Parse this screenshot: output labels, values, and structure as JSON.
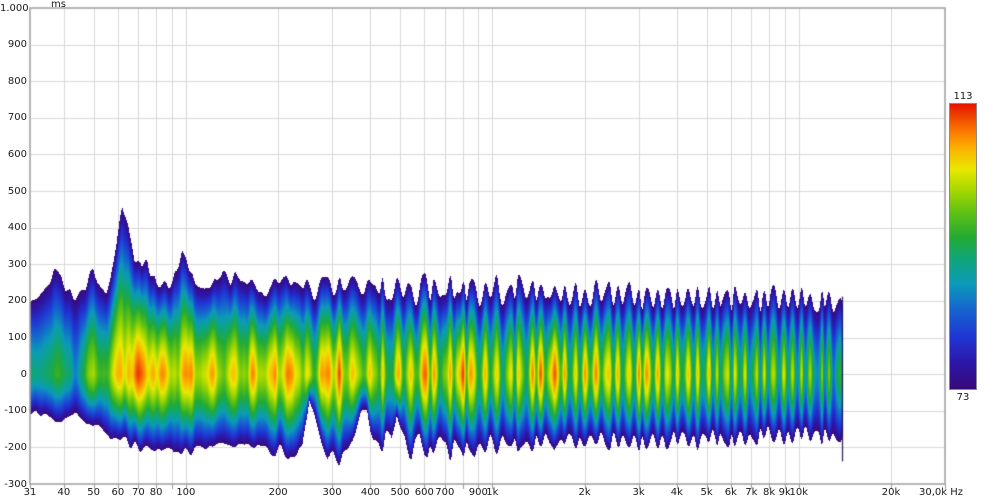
{
  "axes": {
    "x": {
      "scale": "log",
      "unit_suffix": "Hz",
      "min_hz": 31,
      "max_hz": 30000,
      "tick_labels": [
        {
          "hz": 31,
          "label": "31"
        },
        {
          "hz": 40,
          "label": "40"
        },
        {
          "hz": 50,
          "label": "50"
        },
        {
          "hz": 60,
          "label": "60"
        },
        {
          "hz": 70,
          "label": "70"
        },
        {
          "hz": 80,
          "label": "80"
        },
        {
          "hz": 100,
          "label": "100"
        },
        {
          "hz": 200,
          "label": "200"
        },
        {
          "hz": 300,
          "label": "300"
        },
        {
          "hz": 400,
          "label": "400"
        },
        {
          "hz": 500,
          "label": "500"
        },
        {
          "hz": 600,
          "label": "600"
        },
        {
          "hz": 700,
          "label": "700"
        },
        {
          "hz": 900,
          "label": "900"
        },
        {
          "hz": 1000,
          "label": "1k"
        },
        {
          "hz": 2000,
          "label": "2k"
        },
        {
          "hz": 3000,
          "label": "3k"
        },
        {
          "hz": 4000,
          "label": "4k"
        },
        {
          "hz": 5000,
          "label": "5k"
        },
        {
          "hz": 6000,
          "label": "6k"
        },
        {
          "hz": 7000,
          "label": "7k"
        },
        {
          "hz": 8000,
          "label": "8k"
        },
        {
          "hz": 9000,
          "label": "9k"
        },
        {
          "hz": 10000,
          "label": "10k"
        },
        {
          "hz": 20000,
          "label": "20k"
        },
        {
          "hz": 30000,
          "label": "30,0k Hz"
        }
      ],
      "gridline_hz": [
        40,
        50,
        60,
        70,
        80,
        90,
        100,
        200,
        300,
        400,
        500,
        600,
        700,
        800,
        900,
        1000,
        2000,
        3000,
        4000,
        5000,
        6000,
        7000,
        8000,
        9000,
        10000,
        20000
      ]
    },
    "y": {
      "unit": "ms",
      "min_ms": -300,
      "max_ms": 1000,
      "step_ms": 100,
      "tick_labels": [
        {
          "ms": 1000,
          "label": "1.000"
        },
        {
          "ms": 900,
          "label": "900"
        },
        {
          "ms": 800,
          "label": "800"
        },
        {
          "ms": 700,
          "label": "700"
        },
        {
          "ms": 600,
          "label": "600"
        },
        {
          "ms": 500,
          "label": "500"
        },
        {
          "ms": 400,
          "label": "400"
        },
        {
          "ms": 300,
          "label": "300"
        },
        {
          "ms": 200,
          "label": "200"
        },
        {
          "ms": 100,
          "label": "100"
        },
        {
          "ms": 0,
          "label": "0"
        },
        {
          "ms": -100,
          "label": "-100"
        },
        {
          "ms": -200,
          "label": "-200"
        },
        {
          "ms": -300,
          "label": "-300"
        }
      ]
    }
  },
  "colorbar": {
    "max_label": "113",
    "min_label": "73",
    "min_db": 73,
    "max_db": 113,
    "gradient_stops": [
      {
        "at": 0.0,
        "color": "#380a78"
      },
      {
        "at": 0.09,
        "color": "#2c17a8"
      },
      {
        "at": 0.18,
        "color": "#1f35d2"
      },
      {
        "at": 0.28,
        "color": "#1565cf"
      },
      {
        "at": 0.37,
        "color": "#0b9ab8"
      },
      {
        "at": 0.45,
        "color": "#0ea57e"
      },
      {
        "at": 0.53,
        "color": "#23aa34"
      },
      {
        "at": 0.62,
        "color": "#5fc113"
      },
      {
        "at": 0.7,
        "color": "#a8d800"
      },
      {
        "at": 0.77,
        "color": "#e8e800"
      },
      {
        "at": 0.84,
        "color": "#fbb500"
      },
      {
        "at": 0.9,
        "color": "#fb7d00"
      },
      {
        "at": 0.95,
        "color": "#f04a00"
      },
      {
        "at": 1.0,
        "color": "#e81200"
      }
    ]
  },
  "chart_data": {
    "type": "heatmap",
    "subtype": "wavelet-spectrogram",
    "xlabel": "Hz",
    "ylabel": "ms",
    "x_range_hz": [
      31,
      30000
    ],
    "data_end_hz": 13800,
    "y_range_ms": [
      -300,
      1000
    ],
    "level_range_db": [
      73,
      113
    ],
    "grid": true,
    "legend_position": "right-colorbar",
    "notable_hot_spots_hz": [
      65,
      80,
      100,
      120,
      182,
      205,
      235,
      300,
      610,
      800,
      1400,
      1650,
      2150,
      3150
    ],
    "low_freq_decay_ridges_hz_ms": [
      [
        62,
        470
      ],
      [
        97,
        340
      ],
      [
        75,
        330
      ],
      [
        132,
        300
      ],
      [
        50,
        285
      ],
      [
        37,
        285
      ],
      [
        208,
        275
      ]
    ],
    "deep_nulls_hz": [
      44,
      253,
      390,
      488
    ],
    "peak_level_db_vs_hz": [
      [
        31,
        93
      ],
      [
        34,
        95
      ],
      [
        37,
        97
      ],
      [
        40,
        94
      ],
      [
        44,
        90
      ],
      [
        47,
        96
      ],
      [
        50,
        102
      ],
      [
        55,
        100
      ],
      [
        60,
        107
      ],
      [
        65,
        110
      ],
      [
        70,
        111
      ],
      [
        75,
        110
      ],
      [
        80,
        111
      ],
      [
        85,
        108
      ],
      [
        90,
        105
      ],
      [
        95,
        107
      ],
      [
        100,
        110
      ],
      [
        107,
        108
      ],
      [
        113,
        109
      ],
      [
        120,
        109
      ],
      [
        128,
        106
      ],
      [
        135,
        107
      ],
      [
        143,
        105
      ],
      [
        152,
        106
      ],
      [
        162,
        108
      ],
      [
        172,
        109
      ],
      [
        182,
        110
      ],
      [
        192,
        108
      ],
      [
        205,
        110
      ],
      [
        218,
        109
      ],
      [
        235,
        111
      ],
      [
        252,
        104
      ],
      [
        268,
        106
      ],
      [
        285,
        109
      ],
      [
        300,
        112
      ],
      [
        315,
        111
      ],
      [
        330,
        109
      ],
      [
        345,
        106
      ],
      [
        360,
        104
      ],
      [
        375,
        108
      ],
      [
        390,
        105
      ],
      [
        405,
        107
      ],
      [
        420,
        109
      ],
      [
        435,
        106
      ],
      [
        455,
        104
      ],
      [
        475,
        106
      ],
      [
        500,
        107
      ],
      [
        530,
        105
      ],
      [
        560,
        107
      ],
      [
        585,
        109
      ],
      [
        610,
        112
      ],
      [
        640,
        108
      ],
      [
        670,
        105
      ],
      [
        700,
        106
      ],
      [
        730,
        107
      ],
      [
        765,
        110
      ],
      [
        800,
        112
      ],
      [
        840,
        109
      ],
      [
        880,
        106
      ],
      [
        920,
        107
      ],
      [
        960,
        105
      ],
      [
        1000,
        107
      ],
      [
        1060,
        105
      ],
      [
        1120,
        104
      ],
      [
        1190,
        106
      ],
      [
        1260,
        105
      ],
      [
        1330,
        107
      ],
      [
        1400,
        111
      ],
      [
        1480,
        108
      ],
      [
        1560,
        110
      ],
      [
        1650,
        111
      ],
      [
        1750,
        107
      ],
      [
        1850,
        105
      ],
      [
        1950,
        106
      ],
      [
        2050,
        108
      ],
      [
        2150,
        110
      ],
      [
        2270,
        108
      ],
      [
        2400,
        106
      ],
      [
        2550,
        107
      ],
      [
        2700,
        105
      ],
      [
        2850,
        106
      ],
      [
        3000,
        108
      ],
      [
        3150,
        110
      ],
      [
        3320,
        107
      ],
      [
        3500,
        106
      ],
      [
        3700,
        104
      ],
      [
        3900,
        105
      ],
      [
        4100,
        106
      ],
      [
        4300,
        105
      ],
      [
        4550,
        106
      ],
      [
        4800,
        104
      ],
      [
        5100,
        105
      ],
      [
        5400,
        103
      ],
      [
        5700,
        104
      ],
      [
        6000,
        102
      ],
      [
        6400,
        104
      ],
      [
        6800,
        102
      ],
      [
        7200,
        103
      ],
      [
        7600,
        102
      ],
      [
        8100,
        103
      ],
      [
        8600,
        101
      ],
      [
        9100,
        103
      ],
      [
        9700,
        101
      ],
      [
        10300,
        102
      ],
      [
        11000,
        100
      ],
      [
        11700,
        101
      ],
      [
        12400,
        99
      ],
      [
        13000,
        98
      ],
      [
        13800,
        96
      ]
    ],
    "decay_upper_extent_ms_vs_hz": [
      [
        31,
        195
      ],
      [
        37,
        285
      ],
      [
        43,
        215
      ],
      [
        47,
        235
      ],
      [
        50,
        285
      ],
      [
        55,
        240
      ],
      [
        58,
        330
      ],
      [
        62,
        470
      ],
      [
        65,
        420
      ],
      [
        68,
        335
      ],
      [
        72,
        295
      ],
      [
        75,
        330
      ],
      [
        80,
        270
      ],
      [
        88,
        255
      ],
      [
        93,
        290
      ],
      [
        97,
        340
      ],
      [
        103,
        285
      ],
      [
        110,
        262
      ],
      [
        120,
        255
      ],
      [
        126,
        268
      ],
      [
        132,
        300
      ],
      [
        140,
        258
      ],
      [
        150,
        270
      ],
      [
        160,
        258
      ],
      [
        172,
        252
      ],
      [
        185,
        248
      ],
      [
        198,
        262
      ],
      [
        208,
        275
      ],
      [
        220,
        258
      ],
      [
        232,
        265
      ],
      [
        248,
        250
      ],
      [
        262,
        245
      ],
      [
        278,
        258
      ],
      [
        295,
        268
      ],
      [
        315,
        258
      ],
      [
        340,
        272
      ],
      [
        365,
        252
      ],
      [
        395,
        262
      ],
      [
        430,
        268
      ],
      [
        470,
        254
      ],
      [
        510,
        266
      ],
      [
        555,
        254
      ],
      [
        605,
        266
      ],
      [
        660,
        252
      ],
      [
        720,
        262
      ],
      [
        790,
        254
      ],
      [
        860,
        262
      ],
      [
        940,
        252
      ],
      [
        1030,
        260
      ],
      [
        1130,
        250
      ],
      [
        1250,
        258
      ],
      [
        1380,
        248
      ],
      [
        1520,
        256
      ],
      [
        1680,
        246
      ],
      [
        1860,
        254
      ],
      [
        2060,
        244
      ],
      [
        2280,
        252
      ],
      [
        2520,
        242
      ],
      [
        2790,
        250
      ],
      [
        3100,
        240
      ],
      [
        3440,
        248
      ],
      [
        3820,
        238
      ],
      [
        4240,
        244
      ],
      [
        4710,
        236
      ],
      [
        5230,
        242
      ],
      [
        5810,
        232
      ],
      [
        6450,
        238
      ],
      [
        7160,
        230
      ],
      [
        7950,
        236
      ],
      [
        8830,
        228
      ],
      [
        9800,
        232
      ],
      [
        10880,
        224
      ],
      [
        12080,
        228
      ],
      [
        13000,
        222
      ],
      [
        13800,
        218
      ]
    ],
    "decay_lower_extent_ms_vs_hz": [
      [
        31,
        105
      ],
      [
        36,
        128
      ],
      [
        40,
        130
      ],
      [
        44,
        118
      ],
      [
        50,
        152
      ],
      [
        57,
        178
      ],
      [
        65,
        198
      ],
      [
        75,
        208
      ],
      [
        85,
        215
      ],
      [
        100,
        218
      ],
      [
        115,
        214
      ],
      [
        135,
        206
      ],
      [
        160,
        202
      ],
      [
        185,
        212
      ],
      [
        215,
        230
      ],
      [
        240,
        224
      ],
      [
        253,
        70
      ],
      [
        268,
        145
      ],
      [
        290,
        230
      ],
      [
        310,
        245
      ],
      [
        340,
        225
      ],
      [
        372,
        120
      ],
      [
        390,
        100
      ],
      [
        410,
        195
      ],
      [
        430,
        235
      ],
      [
        450,
        170
      ],
      [
        470,
        215
      ],
      [
        488,
        115
      ],
      [
        512,
        205
      ],
      [
        545,
        228
      ],
      [
        580,
        190
      ],
      [
        615,
        238
      ],
      [
        660,
        200
      ],
      [
        710,
        228
      ],
      [
        780,
        215
      ],
      [
        850,
        228
      ],
      [
        950,
        210
      ],
      [
        1050,
        224
      ],
      [
        1160,
        204
      ],
      [
        1290,
        218
      ],
      [
        1430,
        202
      ],
      [
        1590,
        214
      ],
      [
        1770,
        198
      ],
      [
        1970,
        210
      ],
      [
        2190,
        196
      ],
      [
        2440,
        206
      ],
      [
        2720,
        194
      ],
      [
        3030,
        204
      ],
      [
        3380,
        190
      ],
      [
        3760,
        200
      ],
      [
        4190,
        188
      ],
      [
        4670,
        198
      ],
      [
        5200,
        186
      ],
      [
        5790,
        196
      ],
      [
        6450,
        184
      ],
      [
        7190,
        192
      ],
      [
        8010,
        182
      ],
      [
        8920,
        190
      ],
      [
        9940,
        180
      ],
      [
        11070,
        188
      ],
      [
        12330,
        180
      ],
      [
        13000,
        200
      ],
      [
        13800,
        195
      ]
    ],
    "stripe_period_log10decades_vs_hz": [
      [
        31,
        0.105
      ],
      [
        60,
        0.085
      ],
      [
        100,
        0.075
      ],
      [
        200,
        0.06
      ],
      [
        350,
        0.048
      ],
      [
        600,
        0.042
      ],
      [
        1000,
        0.038
      ],
      [
        2000,
        0.035
      ],
      [
        4000,
        0.032
      ],
      [
        13800,
        0.03
      ]
    ],
    "stripe_depth_db_vs_hz": [
      [
        31,
        4
      ],
      [
        80,
        6
      ],
      [
        150,
        8
      ],
      [
        300,
        10
      ],
      [
        600,
        12
      ],
      [
        1000,
        13
      ],
      [
        13800,
        13
      ]
    ]
  }
}
